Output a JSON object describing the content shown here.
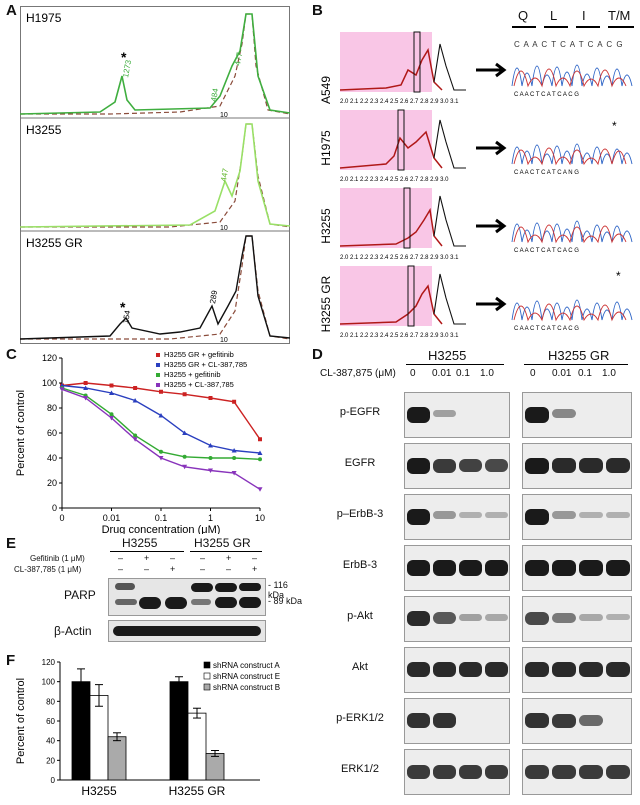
{
  "panelA": {
    "letter": "A",
    "traces": [
      {
        "label": "H1975",
        "peak_labels": [
          "1273",
          "484",
          "477"
        ],
        "marker": "*",
        "axis_tick": "10"
      },
      {
        "label": "H3255",
        "peak_labels": [
          "447"
        ],
        "axis_tick": "10"
      },
      {
        "label": "H3255 GR",
        "peak_labels": [
          "154",
          "289"
        ],
        "marker": "*",
        "axis_tick": "10"
      }
    ]
  },
  "panelB": {
    "letter": "B",
    "codons": [
      "Q",
      "L",
      "I",
      "T/M"
    ],
    "ruler_text": "C A A C T C A T C A C G",
    "tracks": [
      {
        "label": "A549",
        "ticks": "2.0 2.1 2.2 2.3 2.4 2.5 2.6 2.7 2.8 2.9 3.0 3.1",
        "marker": ""
      },
      {
        "label": "H1975",
        "ticks": "2.0 2.1 2.2 2.3 2.4 2.5 2.6 2.7 2.8 2.9 3.0",
        "marker": "*"
      },
      {
        "label": "H3255",
        "ticks": "2.0 2.1 2.2 2.3 2.4 2.5 2.6 2.7 2.8 2.9 3.0 3.1",
        "marker": ""
      },
      {
        "label": "H3255 GR",
        "ticks": "2.0 2.1 2.2 2.3 2.4 2.5 2.6 2.7 2.8 2.9 3.0 3.1",
        "marker": "*"
      }
    ],
    "seq_labels": [
      "C A A C T C A T C A C G",
      "C A A C T C A T C A N G",
      "C A A C T C A T C A C G",
      "C A A C T C A T C A C G"
    ]
  },
  "panelC": {
    "letter": "C"
  },
  "panelD": {
    "letter": "D",
    "groups": [
      "H3255",
      "H3255 GR"
    ],
    "dose_label": "CL-387,875 (μM)",
    "doses": [
      "0",
      "0.01",
      "0.1",
      "1.0",
      "0",
      "0.01",
      "0.1",
      "1.0"
    ],
    "rows": [
      "p-EGFR",
      "EGFR",
      "p–ErbB-3",
      "ErbB-3",
      "p-Akt",
      "Akt",
      "p-ERK1/2",
      "ERK1/2"
    ],
    "intensity": [
      [
        1.0,
        0.15,
        0,
        0,
        1.0,
        0.3,
        0,
        0
      ],
      [
        1.0,
        0.8,
        0.75,
        0.7,
        1.0,
        0.9,
        0.9,
        0.9
      ],
      [
        1.0,
        0.2,
        0.05,
        0.05,
        1.0,
        0.2,
        0.05,
        0.05
      ],
      [
        1.0,
        1.0,
        1.0,
        1.0,
        1.0,
        1.0,
        1.0,
        1.0
      ],
      [
        0.9,
        0.6,
        0.15,
        0.1,
        0.7,
        0.4,
        0.1,
        0.05
      ],
      [
        0.9,
        0.9,
        0.9,
        0.9,
        0.9,
        0.9,
        0.9,
        0.9
      ],
      [
        0.85,
        0.85,
        0,
        0,
        0.85,
        0.8,
        0.5,
        0
      ],
      [
        0.8,
        0.8,
        0.8,
        0.8,
        0.8,
        0.8,
        0.8,
        0.8
      ]
    ]
  },
  "panelE": {
    "letter": "E",
    "groups": [
      "H3255",
      "H3255 GR"
    ],
    "treatments": [
      {
        "name": "Gefitinib (1 μM)",
        "marks": [
          "–",
          "+",
          "–",
          "–",
          "+",
          "–"
        ]
      },
      {
        "name": "CL-387,785 (1 μM)",
        "marks": [
          "–",
          "–",
          "+",
          "–",
          "–",
          "+"
        ]
      }
    ],
    "rows": [
      "PARP",
      "β-Actin"
    ],
    "size_markers": [
      "- 116 kDa",
      "- 89 kDa"
    ]
  },
  "panelF": {
    "letter": "F"
  },
  "chart_data": [
    {
      "type": "line",
      "title": "",
      "xlabel": "Drug concentration (μM)",
      "ylabel": "Percent of control",
      "xscale": "log",
      "xlim": [
        0.001,
        10
      ],
      "ylim": [
        0,
        120
      ],
      "x_tick_labels": [
        "0",
        "0.01",
        "0.1",
        "1",
        "10"
      ],
      "y_tick_labels": [
        "0",
        "20",
        "40",
        "60",
        "80",
        "100",
        "120"
      ],
      "legend_position": "top-right",
      "series": [
        {
          "name": "H3255 GR + gefitinib",
          "color": "#cc2222",
          "marker": "square",
          "x": [
            0.001,
            0.003,
            0.01,
            0.03,
            0.1,
            0.3,
            1,
            3,
            10
          ],
          "y": [
            98,
            100,
            98,
            96,
            93,
            91,
            88,
            85,
            55
          ]
        },
        {
          "name": "H3255 GR + CL-387,785",
          "color": "#2a3fbf",
          "marker": "triangle",
          "x": [
            0.001,
            0.003,
            0.01,
            0.03,
            0.1,
            0.3,
            1,
            3,
            10
          ],
          "y": [
            98,
            96,
            92,
            86,
            74,
            60,
            50,
            46,
            44
          ]
        },
        {
          "name": "H3255 + gefitinib",
          "color": "#33aa33",
          "marker": "circle",
          "x": [
            0.001,
            0.003,
            0.01,
            0.03,
            0.1,
            0.3,
            1,
            3,
            10
          ],
          "y": [
            96,
            90,
            75,
            58,
            45,
            41,
            40,
            40,
            39
          ]
        },
        {
          "name": "H3255 + CL-387,785",
          "color": "#8833bb",
          "marker": "triangle-down",
          "x": [
            0.001,
            0.003,
            0.01,
            0.03,
            0.1,
            0.3,
            1,
            3,
            10
          ],
          "y": [
            95,
            88,
            72,
            55,
            40,
            33,
            30,
            28,
            15
          ]
        }
      ]
    },
    {
      "type": "bar",
      "title": "",
      "xlabel": "",
      "ylabel": "Percent of control",
      "ylim": [
        0,
        120
      ],
      "y_tick_labels": [
        "0",
        "20",
        "40",
        "60",
        "80",
        "100",
        "120"
      ],
      "categories": [
        "H3255",
        "H3255 GR"
      ],
      "legend_position": "top-right",
      "series": [
        {
          "name": "shRNA construct A",
          "color": "#000000",
          "values": [
            100,
            100
          ],
          "errors": [
            13,
            5
          ]
        },
        {
          "name": "shRNA construct E",
          "color": "#ffffff",
          "values": [
            86,
            68
          ],
          "errors": [
            11,
            5
          ]
        },
        {
          "name": "shRNA construct B",
          "color": "#aaaaaa",
          "values": [
            44,
            27
          ],
          "errors": [
            4,
            3
          ]
        }
      ]
    }
  ]
}
